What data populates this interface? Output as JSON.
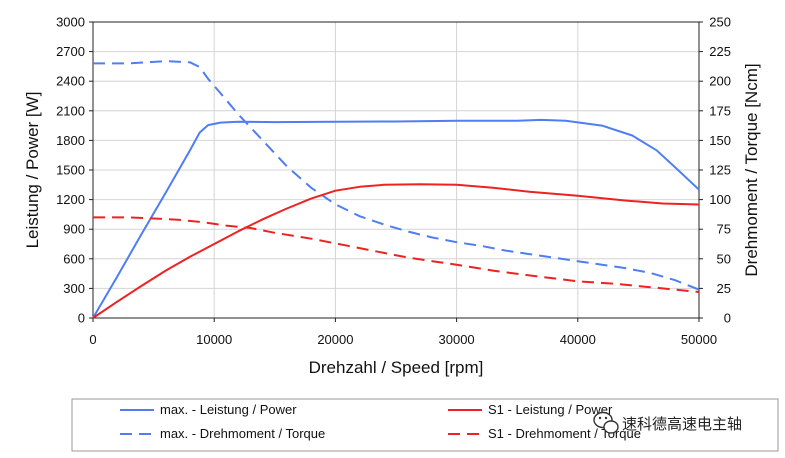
{
  "chart_data": {
    "type": "line",
    "xlabel": "Drehzahl / Speed [rpm]",
    "ylabel_left": "Leistung / Power [W]",
    "ylabel_right": "Drehmoment / Torque [Ncm]",
    "xlim": [
      0,
      50000
    ],
    "ylim_left": [
      0,
      3000
    ],
    "ylim_right": [
      0,
      250
    ],
    "x_ticks": [
      0,
      10000,
      20000,
      30000,
      40000,
      50000
    ],
    "y_ticks_left": [
      0,
      300,
      600,
      900,
      1200,
      1500,
      1800,
      2100,
      2400,
      2700,
      3000
    ],
    "y_ticks_right": [
      0,
      25,
      50,
      75,
      100,
      125,
      150,
      175,
      200,
      225,
      250
    ],
    "grid": true,
    "legend_position": "bottom",
    "series": [
      {
        "name": "max. - Leistung / Power",
        "axis": "left",
        "color": "#4f7df2",
        "dash": "solid",
        "points": [
          [
            0,
            0
          ],
          [
            2000,
            420
          ],
          [
            4000,
            850
          ],
          [
            6000,
            1270
          ],
          [
            8000,
            1700
          ],
          [
            8800,
            1880
          ],
          [
            9500,
            1955
          ],
          [
            10500,
            1980
          ],
          [
            12000,
            1990
          ],
          [
            15000,
            1985
          ],
          [
            20000,
            1990
          ],
          [
            25000,
            1992
          ],
          [
            30000,
            2000
          ],
          [
            35000,
            2000
          ],
          [
            37000,
            2008
          ],
          [
            39000,
            2000
          ],
          [
            42000,
            1950
          ],
          [
            44500,
            1850
          ],
          [
            46500,
            1700
          ],
          [
            48000,
            1530
          ],
          [
            50000,
            1300
          ]
        ]
      },
      {
        "name": "max. - Drehmoment / Torque",
        "axis": "right",
        "color": "#4f7df2",
        "dash": "dashed",
        "points": [
          [
            0,
            215
          ],
          [
            3000,
            215
          ],
          [
            6000,
            217
          ],
          [
            8000,
            216
          ],
          [
            8800,
            212
          ],
          [
            9500,
            202
          ],
          [
            10500,
            190
          ],
          [
            12000,
            172
          ],
          [
            14000,
            150
          ],
          [
            16000,
            128
          ],
          [
            18000,
            110
          ],
          [
            20000,
            96
          ],
          [
            22000,
            86
          ],
          [
            24000,
            79
          ],
          [
            26000,
            73
          ],
          [
            28000,
            68
          ],
          [
            30000,
            64
          ],
          [
            32000,
            61
          ],
          [
            34000,
            57
          ],
          [
            36000,
            54
          ],
          [
            38000,
            51
          ],
          [
            40000,
            48
          ],
          [
            42000,
            45
          ],
          [
            44000,
            42
          ],
          [
            46000,
            38
          ],
          [
            48000,
            32
          ],
          [
            50000,
            24
          ]
        ]
      },
      {
        "name": "S1 - Leistung / Power",
        "axis": "left",
        "color": "#ee2222",
        "dash": "solid",
        "points": [
          [
            0,
            0
          ],
          [
            2000,
            165
          ],
          [
            4000,
            325
          ],
          [
            6000,
            480
          ],
          [
            8000,
            620
          ],
          [
            10000,
            750
          ],
          [
            12000,
            880
          ],
          [
            14000,
            1000
          ],
          [
            16000,
            1110
          ],
          [
            18000,
            1210
          ],
          [
            20000,
            1290
          ],
          [
            22000,
            1330
          ],
          [
            24000,
            1350
          ],
          [
            27000,
            1355
          ],
          [
            30000,
            1350
          ],
          [
            33000,
            1320
          ],
          [
            36000,
            1280
          ],
          [
            40000,
            1240
          ],
          [
            44000,
            1190
          ],
          [
            47000,
            1160
          ],
          [
            50000,
            1150
          ]
        ]
      },
      {
        "name": "S1 - Drehmoment / Torque",
        "axis": "right",
        "color": "#ee2222",
        "dash": "dashed",
        "points": [
          [
            0,
            85
          ],
          [
            3000,
            85
          ],
          [
            5000,
            84
          ],
          [
            7000,
            83
          ],
          [
            9000,
            81
          ],
          [
            11000,
            78
          ],
          [
            13000,
            76
          ],
          [
            15000,
            72
          ],
          [
            18000,
            67
          ],
          [
            20000,
            63
          ],
          [
            22000,
            59
          ],
          [
            24000,
            55
          ],
          [
            26000,
            51
          ],
          [
            28000,
            48
          ],
          [
            30000,
            45
          ],
          [
            33000,
            40
          ],
          [
            36000,
            36
          ],
          [
            40000,
            31
          ],
          [
            43000,
            29
          ],
          [
            46000,
            26
          ],
          [
            48000,
            24
          ],
          [
            50000,
            22
          ]
        ]
      }
    ]
  },
  "watermark": {
    "text": "速科德高速电主轴",
    "icon": "wechat-icon"
  },
  "colors": {
    "grid": "#d4d4d4",
    "axis": "#222222",
    "legend_border": "#9a9a9a",
    "blue": "#4f7df2",
    "red": "#ee2222"
  }
}
